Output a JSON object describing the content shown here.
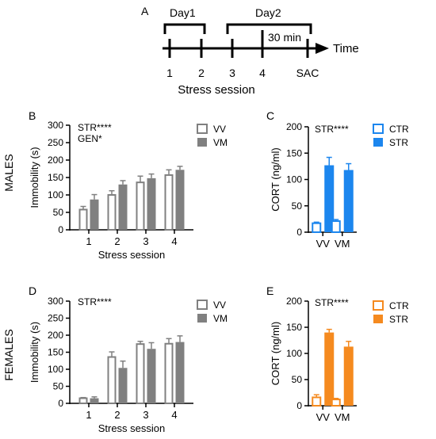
{
  "timeline": {
    "panel_label": "A",
    "day1_label": "Day1",
    "day2_label": "Day2",
    "wait_label": "30 min",
    "axis_label": "Time",
    "ticks": [
      "1",
      "2",
      "3",
      "4",
      "SAC"
    ],
    "xlabel": "Stress session"
  },
  "row_labels": {
    "males": "MALES",
    "females": "FEMALES"
  },
  "colors": {
    "vv_edge": "#808080",
    "vm_fill": "#808080",
    "male_cort": "#1c86ee",
    "female_cort": "#f58a1f",
    "axis": "#000000"
  },
  "chart_data": [
    {
      "id": "B",
      "panel_label": "B",
      "type": "bar",
      "categories": [
        "1",
        "2",
        "3",
        "4"
      ],
      "series": [
        {
          "name": "VV",
          "values": [
            58,
            100,
            136,
            157
          ],
          "errors": [
            9,
            12,
            18,
            15
          ],
          "style": "open"
        },
        {
          "name": "VM",
          "values": [
            87,
            130,
            148,
            172
          ],
          "errors": [
            14,
            11,
            12,
            10
          ],
          "style": "filled"
        }
      ],
      "xlabel": "Stress session",
      "ylabel": "Immobility (s)",
      "ylim": [
        0,
        300
      ],
      "yticks": [
        "0",
        "50",
        "100",
        "150",
        "200",
        "250",
        "300"
      ],
      "annotations": [
        "STR****",
        "GEN*"
      ],
      "legend_position": "top-right"
    },
    {
      "id": "C",
      "panel_label": "C",
      "type": "bar",
      "categories": [
        "VV",
        "VM"
      ],
      "series": [
        {
          "name": "CTR",
          "values": [
            17,
            21
          ],
          "errors": [
            2,
            3
          ],
          "style": "open"
        },
        {
          "name": "STR",
          "values": [
            127,
            118
          ],
          "errors": [
            15,
            12
          ],
          "style": "filled"
        }
      ],
      "xlabel": "",
      "ylabel": "CORT (ng/ml)",
      "ylim": [
        0,
        200
      ],
      "yticks": [
        "0",
        "50",
        "100",
        "150",
        "200"
      ],
      "annotations": [
        "STR****"
      ],
      "legend_position": "top-right"
    },
    {
      "id": "D",
      "panel_label": "D",
      "type": "bar",
      "categories": [
        "1",
        "2",
        "3",
        "4"
      ],
      "series": [
        {
          "name": "VV",
          "values": [
            15,
            136,
            174,
            175
          ],
          "errors": [
            2,
            15,
            8,
            15
          ],
          "style": "open"
        },
        {
          "name": "VM",
          "values": [
            15,
            104,
            160,
            180
          ],
          "errors": [
            4,
            20,
            18,
            18
          ],
          "style": "filled"
        }
      ],
      "xlabel": "Stress session",
      "ylabel": "Immobility (s)",
      "ylim": [
        0,
        300
      ],
      "yticks": [
        "0",
        "50",
        "100",
        "150",
        "200",
        "250",
        "300"
      ],
      "annotations": [
        "STR****"
      ],
      "legend_position": "top-right"
    },
    {
      "id": "E",
      "panel_label": "E",
      "type": "bar",
      "categories": [
        "VV",
        "VM"
      ],
      "series": [
        {
          "name": "CTR",
          "values": [
            16,
            12
          ],
          "errors": [
            5,
            2
          ],
          "style": "open"
        },
        {
          "name": "STR",
          "values": [
            140,
            113
          ],
          "errors": [
            6,
            10
          ],
          "style": "filled"
        }
      ],
      "xlabel": "",
      "ylabel": "CORT (ng/ml)",
      "ylim": [
        0,
        200
      ],
      "yticks": [
        "0",
        "50",
        "100",
        "150",
        "200"
      ],
      "annotations": [
        "STR****"
      ],
      "legend_position": "top-right"
    }
  ]
}
